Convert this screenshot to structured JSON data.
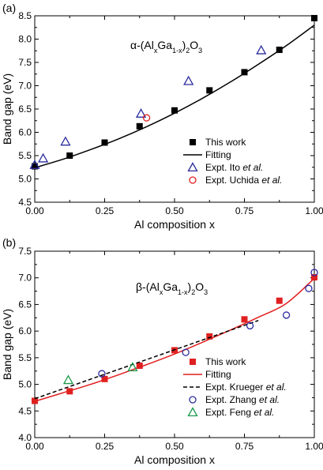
{
  "chart_data": [
    {
      "type": "scatter",
      "panel_label": "(a)",
      "title_parts": [
        "α-(Al",
        "x",
        "Ga",
        "1-x",
        ")",
        "2",
        "O",
        "3"
      ],
      "xlabel": "Al composition x",
      "ylabel": "Band gap (eV)",
      "xlim": [
        0,
        1
      ],
      "ylim": [
        4.5,
        8.5
      ],
      "xticks": [
        0.0,
        0.25,
        0.5,
        0.75,
        1.0
      ],
      "xtick_labels": [
        "0.00",
        "0.25",
        "0.50",
        "0.75",
        "1.00"
      ],
      "yticks": [
        4.5,
        5.0,
        5.5,
        6.0,
        6.5,
        7.0,
        7.5,
        8.0,
        8.5
      ],
      "ytick_labels": [
        "4.5",
        "5.0",
        "5.5",
        "6.0",
        "6.5",
        "7.0",
        "7.5",
        "8.0",
        "8.5"
      ],
      "legend_position": "lower-right",
      "series": [
        {
          "name": "This work",
          "marker": "square-filled",
          "color": "#000000",
          "x": [
            0.0,
            0.125,
            0.25,
            0.375,
            0.5,
            0.625,
            0.75,
            0.875,
            1.0
          ],
          "y": [
            5.27,
            5.5,
            5.78,
            6.13,
            6.47,
            6.9,
            7.29,
            7.77,
            8.45
          ]
        },
        {
          "name": "Fitting",
          "marker": "line-solid",
          "color": "#000000",
          "x": [
            0.0,
            0.1,
            0.2,
            0.3,
            0.4,
            0.5,
            0.6,
            0.7,
            0.8,
            0.9,
            1.0
          ],
          "y": [
            5.24,
            5.42,
            5.63,
            5.86,
            6.12,
            6.41,
            6.73,
            7.08,
            7.46,
            7.86,
            8.3
          ]
        },
        {
          "name": "Expt. Ito et al.",
          "name_parts": [
            "Expt. Ito ",
            "et al."
          ],
          "marker": "triangle-open",
          "color": "#2b2b9e",
          "x": [
            0.0,
            0.03,
            0.11,
            0.38,
            0.55,
            0.81
          ],
          "y": [
            5.3,
            5.44,
            5.8,
            6.4,
            7.1,
            7.76
          ]
        },
        {
          "name": "Expt. Uchida et al.",
          "name_parts": [
            "Expt. Uchida ",
            "et al."
          ],
          "marker": "circle-open",
          "color": "#e02020",
          "x": [
            0.4
          ],
          "y": [
            6.31
          ]
        }
      ]
    },
    {
      "type": "scatter",
      "panel_label": "(b)",
      "title_parts": [
        "β-(Al",
        "x",
        "Ga",
        "1-x",
        ")",
        "2",
        "O",
        "3"
      ],
      "xlabel": "Al composition x",
      "ylabel": "Band gap (eV)",
      "xlim": [
        0,
        1
      ],
      "ylim": [
        4.0,
        7.5
      ],
      "xticks": [
        0.0,
        0.25,
        0.5,
        0.75,
        1.0
      ],
      "xtick_labels": [
        "0.00",
        "0.25",
        "0.50",
        "0.75",
        "1.00"
      ],
      "yticks": [
        4.0,
        4.5,
        5.0,
        5.5,
        6.0,
        6.5,
        7.0,
        7.5
      ],
      "ytick_labels": [
        "4.0",
        "4.5",
        "5.0",
        "5.5",
        "6.0",
        "6.5",
        "7.0",
        "7.5"
      ],
      "legend_position": "lower-right",
      "series": [
        {
          "name": "This work",
          "marker": "square-filled",
          "color": "#e02020",
          "x": [
            0.0,
            0.125,
            0.25,
            0.375,
            0.5,
            0.625,
            0.75,
            0.875,
            1.0
          ],
          "y": [
            4.69,
            4.87,
            5.1,
            5.35,
            5.64,
            5.9,
            6.22,
            6.57,
            7.01
          ]
        },
        {
          "name": "Fitting",
          "marker": "line-solid",
          "color": "#e02020",
          "x": [
            0.0,
            0.1,
            0.2,
            0.3,
            0.4,
            0.5,
            0.6,
            0.7,
            0.8,
            0.9,
            1.0
          ],
          "y": [
            4.68,
            4.84,
            5.0,
            5.18,
            5.37,
            5.57,
            5.79,
            6.02,
            6.26,
            6.52,
            6.99
          ]
        },
        {
          "name": "Expt. Krueger et al.",
          "name_parts": [
            "Expt. Krueger ",
            "et al."
          ],
          "marker": "line-dashed",
          "color": "#000000",
          "x": [
            0.0,
            0.8
          ],
          "y": [
            4.73,
            6.2
          ]
        },
        {
          "name": "Expt. Zhang et al.",
          "name_parts": [
            "Expt. Zhang ",
            "et al."
          ],
          "marker": "circle-open",
          "color": "#2b2b9e",
          "x": [
            0.24,
            0.54,
            0.77,
            0.9,
            0.98,
            1.0
          ],
          "y": [
            5.2,
            5.6,
            6.1,
            6.3,
            6.8,
            7.1
          ]
        },
        {
          "name": "Expt. Feng et al.",
          "name_parts": [
            "Expt. Feng ",
            "et al."
          ],
          "marker": "triangle-open",
          "color": "#1a9a4a",
          "x": [
            0.12,
            0.35
          ],
          "y": [
            5.08,
            5.32
          ]
        }
      ]
    }
  ]
}
